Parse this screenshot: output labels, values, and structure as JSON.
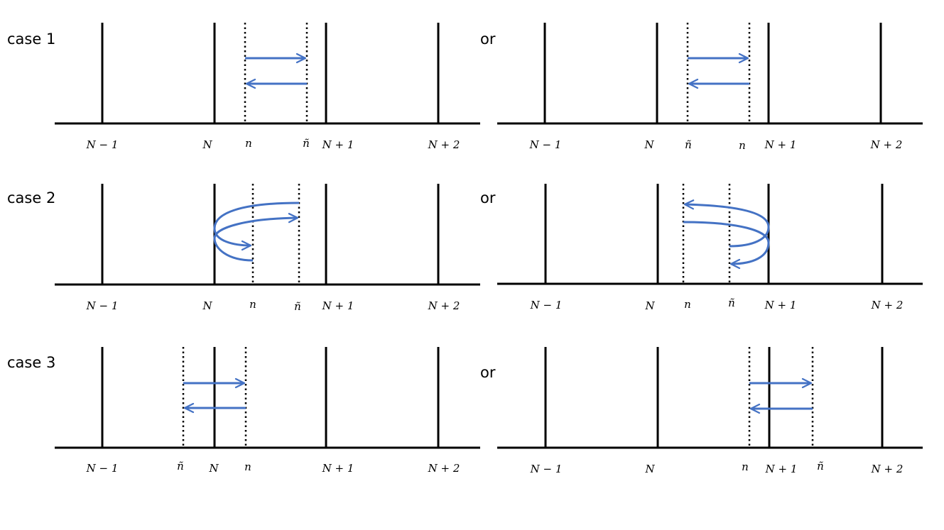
{
  "colors": {
    "line": "#000000",
    "arrow": "#4472C4"
  },
  "case_labels": [
    "case 1",
    "case 2",
    "case 3"
  ],
  "or_label": "or",
  "tick_labels": {
    "n_minus_1": "N − 1",
    "n_cap": "N",
    "n_plus_1": "N + 1",
    "n_plus_2": "N + 2",
    "n": "n",
    "n_tilde": "ñ"
  }
}
